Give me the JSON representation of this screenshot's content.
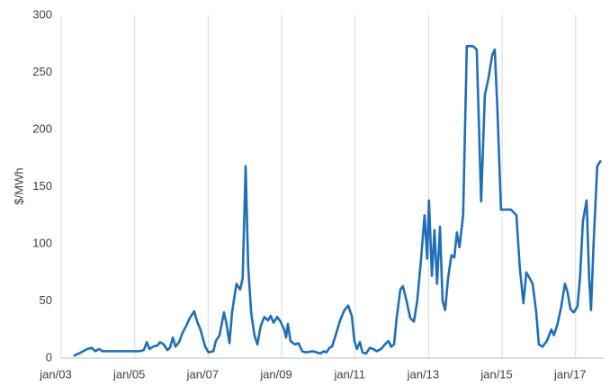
{
  "chart_data": {
    "type": "line",
    "y_label": "$/MWh",
    "xlim": [
      2003,
      2017.79
    ],
    "xticks": [
      {
        "value": 2003,
        "label": "jan/03"
      },
      {
        "value": 2005,
        "label": "jan/05"
      },
      {
        "value": 2007,
        "label": "jan/07"
      },
      {
        "value": 2009,
        "label": "jan/09"
      },
      {
        "value": 2011,
        "label": "jan/11"
      },
      {
        "value": 2013,
        "label": "jan/13"
      },
      {
        "value": 2015,
        "label": "jan/15"
      },
      {
        "value": 2017,
        "label": "jan/17"
      }
    ],
    "ylim": [
      0,
      300
    ],
    "yticks": [
      0,
      50,
      100,
      150,
      200,
      250,
      300
    ],
    "grid": "x",
    "x": [
      2003.34,
      2003.54,
      2003.71,
      2003.83,
      2003.93,
      2004.03,
      2004.13,
      2004.27,
      2005.13,
      2005.25,
      2005.33,
      2005.4,
      2005.5,
      2005.62,
      2005.69,
      2005.79,
      2005.89,
      2005.96,
      2006.04,
      2006.11,
      2006.21,
      2006.3,
      2006.4,
      2006.5,
      2006.62,
      2006.7,
      2006.79,
      2006.92,
      2007.01,
      2007.14,
      2007.21,
      2007.31,
      2007.43,
      2007.5,
      2007.58,
      2007.65,
      2007.77,
      2007.87,
      2007.94,
      2008.02,
      2008.09,
      2008.17,
      2008.26,
      2008.34,
      2008.43,
      2008.53,
      2008.63,
      2008.7,
      2008.78,
      2008.88,
      2008.97,
      2009.07,
      2009.12,
      2009.17,
      2009.24,
      2009.36,
      2009.46,
      2009.56,
      2009.66,
      2009.85,
      2009.95,
      2010.05,
      2010.15,
      2010.22,
      2010.3,
      2010.37,
      2010.47,
      2010.59,
      2010.71,
      2010.81,
      2010.91,
      2010.98,
      2011.05,
      2011.13,
      2011.2,
      2011.3,
      2011.4,
      2011.49,
      2011.59,
      2011.71,
      2011.81,
      2011.91,
      2011.98,
      2012.06,
      2012.13,
      2012.23,
      2012.3,
      2012.4,
      2012.5,
      2012.6,
      2012.69,
      2012.79,
      2012.89,
      2012.96,
      2013.01,
      2013.09,
      2013.16,
      2013.23,
      2013.31,
      2013.38,
      2013.45,
      2013.53,
      2013.62,
      2013.7,
      2013.77,
      2013.84,
      2013.94,
      2014.04,
      2014.21,
      2014.31,
      2014.43,
      2014.53,
      2014.63,
      2014.73,
      2014.8,
      2014.87,
      2014.97,
      2015.09,
      2015.24,
      2015.39,
      2015.48,
      2015.58,
      2015.66,
      2015.75,
      2015.83,
      2015.93,
      2016.0,
      2016.1,
      2016.22,
      2016.34,
      2016.41,
      2016.51,
      2016.61,
      2016.71,
      2016.78,
      2016.86,
      2016.95,
      2017.05,
      2017.12,
      2017.2,
      2017.3,
      2017.37,
      2017.42,
      2017.49,
      2017.59,
      2017.69
    ],
    "series": [
      {
        "color": "#1f6fb8",
        "values": [
          2,
          5,
          8,
          9,
          6,
          8,
          6,
          6,
          6,
          7,
          14,
          8,
          10,
          11,
          14,
          12,
          7,
          9,
          18,
          10,
          14,
          22,
          28,
          35,
          41,
          32,
          25,
          10,
          5,
          6,
          15,
          20,
          40,
          30,
          13,
          40,
          65,
          60,
          70,
          168,
          80,
          40,
          20,
          12,
          28,
          36,
          33,
          37,
          31,
          36,
          32,
          25,
          18,
          30,
          15,
          12,
          13,
          6,
          5,
          6,
          5,
          4,
          6,
          5,
          9,
          10,
          20,
          33,
          42,
          46,
          37,
          15,
          8,
          14,
          5,
          4,
          9,
          8,
          6,
          8,
          12,
          15,
          10,
          12,
          35,
          60,
          63,
          50,
          35,
          32,
          50,
          85,
          125,
          87,
          138,
          72,
          112,
          65,
          115,
          50,
          42,
          70,
          90,
          88,
          110,
          97,
          125,
          273,
          273,
          270,
          137,
          230,
          245,
          265,
          270,
          220,
          130,
          130,
          130,
          125,
          80,
          48,
          75,
          70,
          65,
          40,
          12,
          10,
          15,
          25,
          20,
          30,
          45,
          65,
          58,
          43,
          40,
          45,
          70,
          120,
          138,
          70,
          42,
          100,
          168,
          173
        ]
      }
    ]
  }
}
